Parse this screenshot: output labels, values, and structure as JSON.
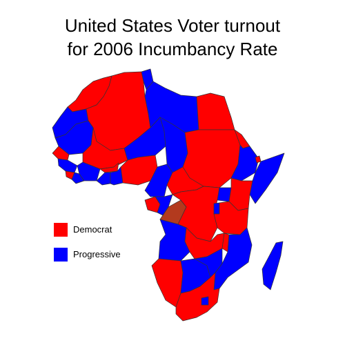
{
  "title": {
    "line1": "United States Voter turnout",
    "line2": "for 2006 Incumbancy Rate"
  },
  "legend": [
    {
      "label": "Democrat",
      "color": "#ff0000"
    },
    {
      "label": "Progressive",
      "color": "#0000ff"
    }
  ],
  "colors": {
    "democrat": "#ff0000",
    "progressive": "#0000ff",
    "mixed": "#b33a1e",
    "border": "#333333"
  },
  "map": {
    "regions": [
      {
        "name": "morocco",
        "party": "democrat"
      },
      {
        "name": "western-sahara",
        "party": "progressive"
      },
      {
        "name": "algeria",
        "party": "democrat"
      },
      {
        "name": "tunisia",
        "party": "progressive"
      },
      {
        "name": "libya",
        "party": "progressive"
      },
      {
        "name": "egypt",
        "party": "democrat"
      },
      {
        "name": "mauritania",
        "party": "progressive"
      },
      {
        "name": "mali",
        "party": "democrat"
      },
      {
        "name": "niger",
        "party": "progressive"
      },
      {
        "name": "chad",
        "party": "progressive"
      },
      {
        "name": "sudan",
        "party": "democrat"
      },
      {
        "name": "eritrea",
        "party": "democrat"
      },
      {
        "name": "ethiopia",
        "party": "progressive"
      },
      {
        "name": "djibouti",
        "party": "democrat"
      },
      {
        "name": "somalia",
        "party": "progressive"
      },
      {
        "name": "senegal",
        "party": "democrat"
      },
      {
        "name": "guinea",
        "party": "progressive"
      },
      {
        "name": "sierra-leone",
        "party": "democrat"
      },
      {
        "name": "liberia",
        "party": "progressive"
      },
      {
        "name": "ivory-coast",
        "party": "progressive"
      },
      {
        "name": "burkina-faso",
        "party": "democrat"
      },
      {
        "name": "ghana",
        "party": "progressive"
      },
      {
        "name": "togo-benin",
        "party": "progressive"
      },
      {
        "name": "nigeria",
        "party": "democrat"
      },
      {
        "name": "cameroon",
        "party": "progressive"
      },
      {
        "name": "central-african-republic",
        "party": "democrat"
      },
      {
        "name": "gabon",
        "party": "democrat"
      },
      {
        "name": "congo",
        "party": "progressive"
      },
      {
        "name": "dr-congo-west",
        "party": "mixed"
      },
      {
        "name": "dr-congo",
        "party": "democrat"
      },
      {
        "name": "uganda",
        "party": "progressive"
      },
      {
        "name": "kenya",
        "party": "democrat"
      },
      {
        "name": "rwanda-burundi",
        "party": "progressive"
      },
      {
        "name": "tanzania",
        "party": "democrat"
      },
      {
        "name": "angola",
        "party": "progressive"
      },
      {
        "name": "zambia",
        "party": "democrat"
      },
      {
        "name": "malawi",
        "party": "democrat"
      },
      {
        "name": "mozambique",
        "party": "progressive"
      },
      {
        "name": "namibia",
        "party": "democrat"
      },
      {
        "name": "botswana",
        "party": "progressive"
      },
      {
        "name": "zimbabwe",
        "party": "progressive"
      },
      {
        "name": "south-africa",
        "party": "democrat"
      },
      {
        "name": "lesotho",
        "party": "progressive"
      },
      {
        "name": "madagascar",
        "party": "progressive"
      }
    ]
  }
}
